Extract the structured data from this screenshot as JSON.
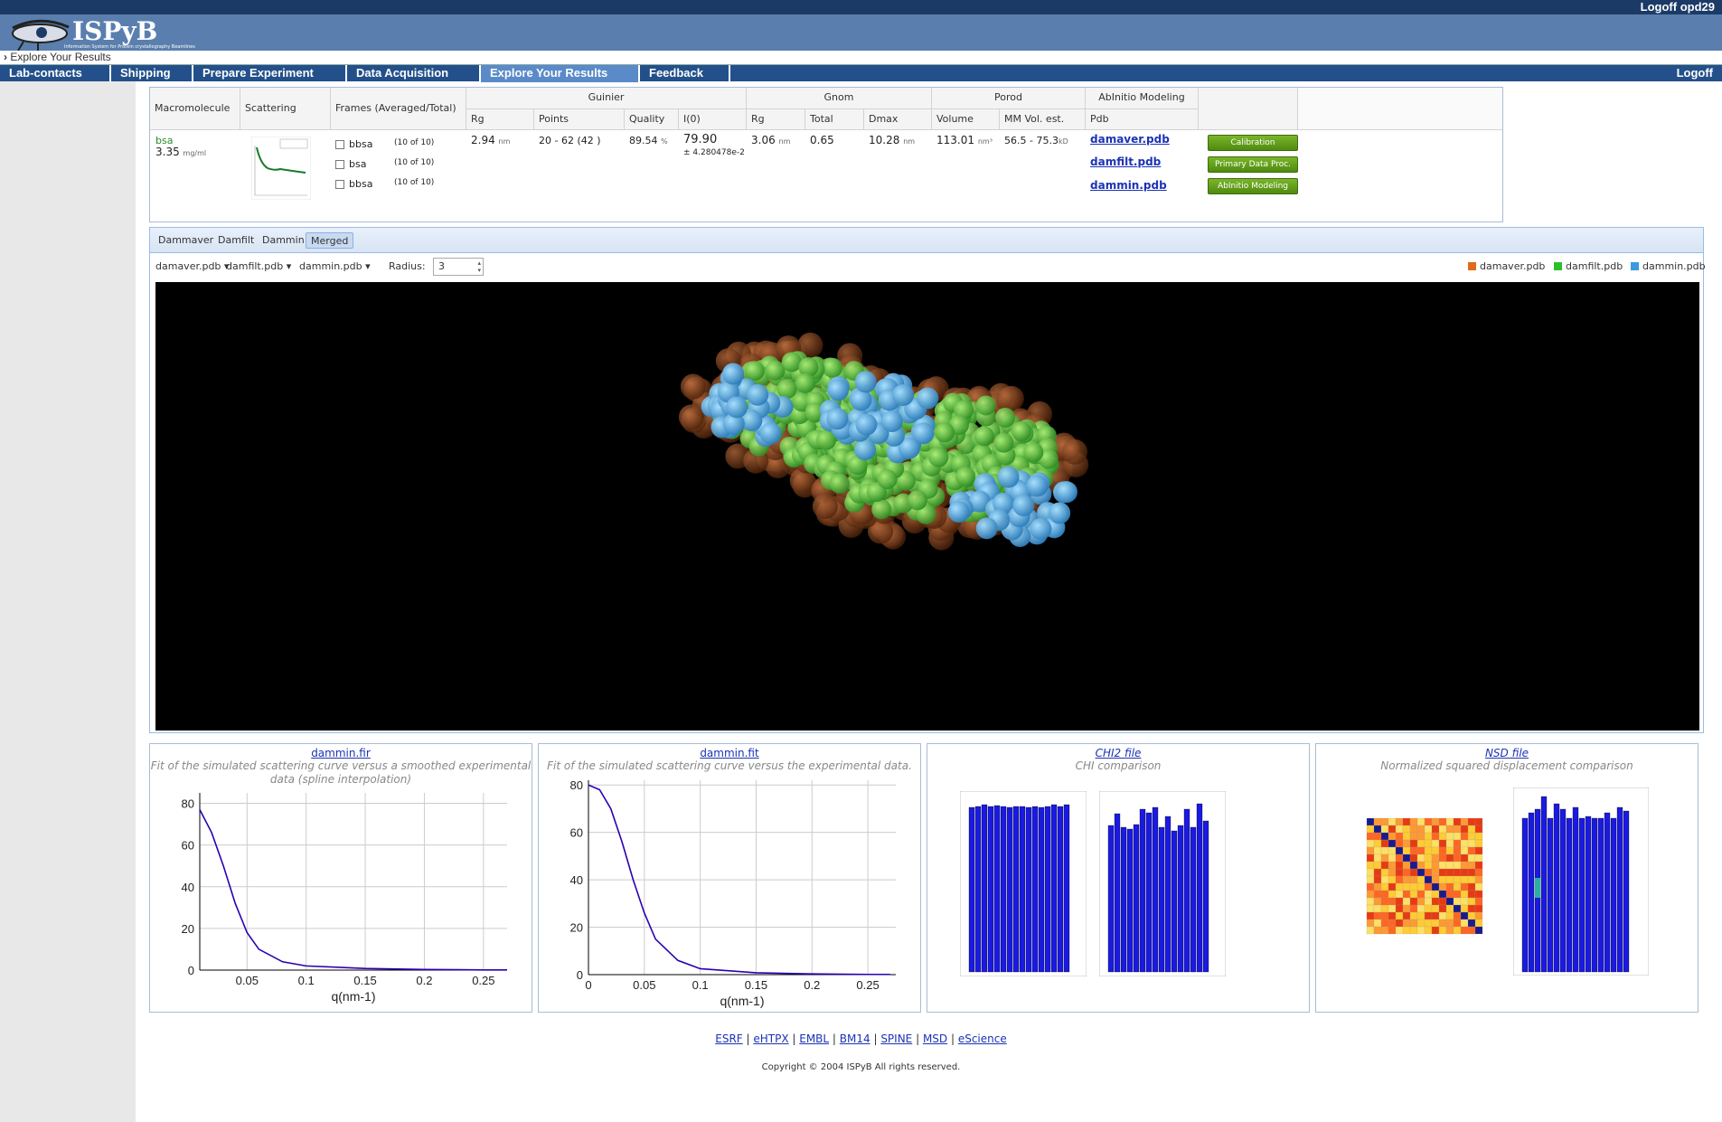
{
  "header": {
    "user_link": "Logoff opd29",
    "logo_text": "ISPyB",
    "logo_subtitle": "Information System for Protein crystallography Beamlines"
  },
  "breadcrumb": "Explore Your Results",
  "nav": {
    "items": [
      "Lab-contacts",
      "Shipping",
      "Prepare Experiment",
      "Data Acquisition",
      "Explore Your Results",
      "Feedback"
    ],
    "logoff": "Logoff"
  },
  "grid": {
    "headers": {
      "macromolecule": "Macromolecule",
      "scattering": "Scattering",
      "frames": "Frames (Averaged/Total)",
      "guinier": "Guinier",
      "gnom": "Gnom",
      "porod": "Porod",
      "abinitio": "AbInitio Modeling",
      "rg": "Rg",
      "points": "Points",
      "quality": "Quality",
      "i0": "I(0)",
      "gnom_rg": "Rg",
      "total": "Total",
      "dmax": "Dmax",
      "volume": "Volume",
      "mm": "MM Vol. est.",
      "pdb": "Pdb"
    },
    "row": {
      "macro_name": "bsa",
      "conc": "3.35",
      "conc_unit": "mg/ml",
      "frames": [
        {
          "name": "bbsa",
          "count": "(10 of 10)"
        },
        {
          "name": "bsa",
          "count": "(10 of 10)"
        },
        {
          "name": "bbsa",
          "count": "(10 of 10)"
        }
      ],
      "rg": "2.94",
      "rg_unit": "nm",
      "points": "20 - 62 (42 )",
      "quality": "89.54",
      "quality_unit": "%",
      "i0": "79.90",
      "i0_err": "± 4.280478e-2",
      "gnom_rg": "3.06",
      "gnom_rg_unit": "nm",
      "total": "0.65",
      "dmax": "10.28",
      "dmax_unit": "nm",
      "volume": "113.01",
      "volume_unit": "nm³",
      "mm": "56.5 - 75.3",
      "mm_unit": "kD",
      "pdbs": [
        "damaver.pdb",
        "damfilt.pdb",
        "dammin.pdb"
      ],
      "buttons": [
        "Calibration",
        "Primary Data Proc.",
        "AbInitio Modeling"
      ]
    }
  },
  "viewer": {
    "tabs": [
      "Dammaver",
      "Damfilt",
      "Dammin",
      "Merged"
    ],
    "selected_tab": "Merged",
    "dropdowns": [
      "damaver.pdb",
      "damfilt.pdb",
      "dammin.pdb"
    ],
    "radius_label": "Radius:",
    "radius_value": "3",
    "legend": [
      {
        "name": "damaver.pdb",
        "color": "#e0691a"
      },
      {
        "name": "damfilt.pdb",
        "color": "#2bbf2b"
      },
      {
        "name": "dammin.pdb",
        "color": "#3a9be0"
      }
    ]
  },
  "cards": [
    {
      "title": "dammin.fir",
      "subtitle": "Fit of the simulated scattering curve versus a smoothed experimental data (spline interpolation)"
    },
    {
      "title": "dammin.fit",
      "subtitle": "Fit of the simulated scattering curve versus the experimental data."
    },
    {
      "title": "CHI2 file",
      "subtitle": "CHI comparison"
    },
    {
      "title": "NSD file",
      "subtitle": "Normalized squared displacement comparison"
    }
  ],
  "chart_data": [
    {
      "type": "line",
      "title": "",
      "xlabel": "q(nm-1)",
      "ylabel": "",
      "xlim": [
        0.01,
        0.27
      ],
      "ylim": [
        0,
        85
      ],
      "x": [
        0.01,
        0.02,
        0.03,
        0.04,
        0.05,
        0.06,
        0.08,
        0.1,
        0.15,
        0.2,
        0.25,
        0.27
      ],
      "series": [
        {
          "values": [
            77,
            66,
            50,
            32,
            18,
            10,
            4,
            2,
            0.8,
            0.3,
            0.1,
            0.1
          ]
        }
      ],
      "xticks": [
        "0.05",
        "0.1",
        "0.15",
        "0.2",
        "0.25"
      ],
      "yticks": [
        "0",
        "20",
        "40",
        "60",
        "80"
      ]
    },
    {
      "type": "line",
      "title": "",
      "xlabel": "q(nm-1)",
      "ylabel": "",
      "xlim": [
        0,
        0.275
      ],
      "ylim": [
        0,
        82
      ],
      "x": [
        0,
        0.01,
        0.02,
        0.03,
        0.04,
        0.05,
        0.06,
        0.08,
        0.1,
        0.15,
        0.2,
        0.25,
        0.27
      ],
      "series": [
        {
          "values": [
            80,
            78,
            70,
            56,
            40,
            26,
            15,
            6,
            2.5,
            0.8,
            0.3,
            0.1,
            0.1
          ]
        }
      ],
      "xticks": [
        "0",
        "0.05",
        "0.1",
        "0.15",
        "0.2",
        "0.25"
      ],
      "yticks": [
        "0",
        "20",
        "40",
        "60",
        "80"
      ]
    }
  ],
  "footer": {
    "links": [
      "ESRF",
      "eHTPX",
      "EMBL",
      "BM14",
      "SPINE",
      "MSD",
      "eScience"
    ],
    "copyright": "Copyright © 2004 ISPyB All rights reserved."
  }
}
